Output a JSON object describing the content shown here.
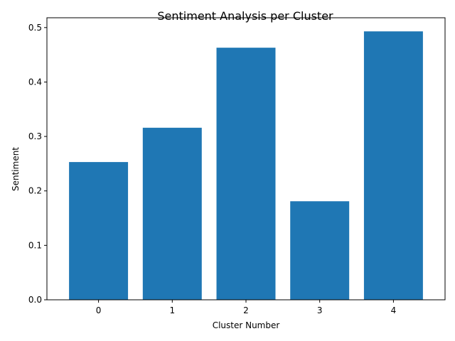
{
  "chart_data": {
    "type": "bar",
    "title": "Sentiment Analysis per Cluster",
    "xlabel": "Cluster Number",
    "ylabel": "Sentiment",
    "categories": [
      "0",
      "1",
      "2",
      "3",
      "4"
    ],
    "values": [
      0.253,
      0.316,
      0.463,
      0.181,
      0.493
    ],
    "ylim": [
      0,
      0.518
    ],
    "yticks": [
      "0.0",
      "0.1",
      "0.2",
      "0.3",
      "0.4",
      "0.5"
    ],
    "grid": false,
    "bar_color": "#1f77b4"
  }
}
